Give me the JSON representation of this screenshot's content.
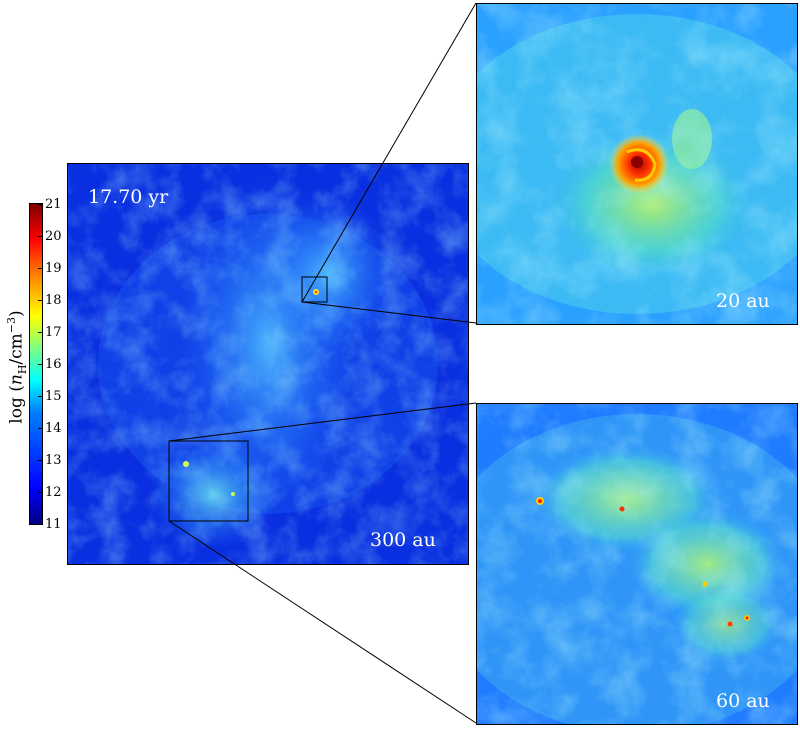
{
  "image": {
    "time_label": "17.70 yr",
    "main_scale_label": "300 au",
    "zoom_top_scale_label": "20 au",
    "zoom_bottom_scale_label": "60 au",
    "colorbar": {
      "label_prefix": "log (",
      "label_n": "n",
      "label_sub": "H",
      "label_mid": "/cm",
      "label_sup": "−3",
      "label_suffix": ")",
      "ticks": [
        "21",
        "20",
        "19",
        "18",
        "17",
        "16",
        "15",
        "14",
        "13",
        "12",
        "11"
      ],
      "range": [
        11,
        21
      ],
      "colormap": "jet",
      "colors": [
        "#00007f",
        "#0000ff",
        "#007fff",
        "#00ffff",
        "#7fff7f",
        "#ffff00",
        "#ff7f00",
        "#ff0000",
        "#7f0000"
      ]
    },
    "background_color": "#0a2fe0"
  }
}
